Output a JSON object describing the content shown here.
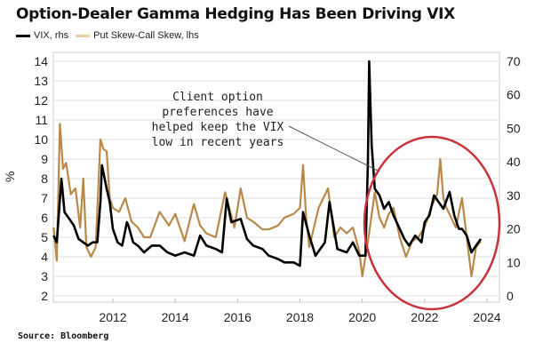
{
  "chart_data": {
    "type": "line",
    "title": "Option-Dealer Gamma Hedging Has Been Driving VIX",
    "source": "Source: Bloomberg",
    "left_axis": {
      "label": "%",
      "range": [
        2,
        14
      ],
      "ticks": [
        "2",
        "3",
        "4",
        "5",
        "6",
        "7",
        "8",
        "9",
        "10",
        "11",
        "12",
        "13",
        "14"
      ]
    },
    "right_axis": {
      "range": [
        0,
        70
      ],
      "ticks": [
        "0",
        "10",
        "20",
        "30",
        "40",
        "50",
        "60",
        "70"
      ]
    },
    "x_axis": {
      "range": [
        2010.09,
        2024.4
      ],
      "ticks": [
        "2012",
        "2014",
        "2016",
        "2018",
        "2020",
        "2022",
        "2024"
      ]
    },
    "grid": true,
    "legend_placement": "top-left",
    "annotation": [
      "Client option",
      "preferences have",
      "helped keep the VIX",
      "low in recent years"
    ],
    "series": [
      {
        "name": "VIX, rhs",
        "axis": "right",
        "color": "#000000",
        "x": [
          2010.1,
          2010.2,
          2010.35,
          2010.45,
          2010.6,
          2010.75,
          2010.9,
          2011.05,
          2011.2,
          2011.35,
          2011.5,
          2011.6,
          2011.65,
          2011.8,
          2011.9,
          2012.0,
          2012.15,
          2012.3,
          2012.45,
          2012.5,
          2012.65,
          2012.8,
          2013.0,
          2013.25,
          2013.5,
          2013.75,
          2014.0,
          2014.3,
          2014.6,
          2014.8,
          2015.0,
          2015.3,
          2015.5,
          2015.65,
          2015.8,
          2016.1,
          2016.3,
          2016.5,
          2016.8,
          2017.0,
          2017.3,
          2017.5,
          2017.8,
          2018.0,
          2018.1,
          2018.3,
          2018.5,
          2018.8,
          2018.95,
          2019.2,
          2019.5,
          2019.7,
          2019.9,
          2020.1,
          2020.18,
          2020.22,
          2020.3,
          2020.4,
          2020.55,
          2020.7,
          2020.85,
          2021.0,
          2021.2,
          2021.35,
          2021.5,
          2021.7,
          2021.9,
          2022.0,
          2022.15,
          2022.3,
          2022.45,
          2022.6,
          2022.8,
          2022.95,
          2023.1,
          2023.2,
          2023.35,
          2023.5,
          2023.65,
          2023.8
        ],
        "values": [
          18,
          16,
          35,
          25,
          23,
          21,
          17,
          16,
          15,
          16,
          16,
          28,
          39,
          32,
          28,
          20,
          16,
          15,
          22,
          21,
          16,
          15,
          13,
          15,
          15,
          13,
          12,
          13,
          12,
          18,
          15,
          14,
          13,
          29,
          22,
          23,
          17,
          15,
          14,
          12,
          11,
          10,
          10,
          9,
          25,
          18,
          12,
          16,
          28,
          14,
          13,
          16,
          12,
          12,
          40,
          70,
          45,
          32,
          30,
          26,
          28,
          24,
          20,
          17,
          15,
          18,
          16,
          22,
          24,
          30,
          28,
          26,
          31,
          24,
          20,
          20,
          18,
          13,
          15,
          17
        ]
      },
      {
        "name": "Put Skew-Call Skew, lhs",
        "axis": "left",
        "color": "#b8894a",
        "x": [
          2010.1,
          2010.2,
          2010.3,
          2010.4,
          2010.5,
          2010.65,
          2010.8,
          2010.95,
          2011.05,
          2011.15,
          2011.3,
          2011.45,
          2011.6,
          2011.7,
          2011.8,
          2011.9,
          2012.0,
          2012.2,
          2012.4,
          2012.6,
          2012.8,
          2013.0,
          2013.2,
          2013.5,
          2013.8,
          2014.0,
          2014.3,
          2014.6,
          2014.8,
          2015.0,
          2015.3,
          2015.6,
          2015.9,
          2016.1,
          2016.3,
          2016.5,
          2016.8,
          2017.0,
          2017.3,
          2017.5,
          2017.8,
          2018.0,
          2018.1,
          2018.2,
          2018.3,
          2018.6,
          2018.9,
          2019.1,
          2019.3,
          2019.5,
          2019.7,
          2019.9,
          2020.0,
          2020.1,
          2020.2,
          2020.4,
          2020.55,
          2020.7,
          2020.85,
          2021.0,
          2021.2,
          2021.4,
          2021.6,
          2021.8,
          2022.0,
          2022.2,
          2022.4,
          2022.5,
          2022.6,
          2022.7,
          2022.85,
          2023.0,
          2023.2,
          2023.35,
          2023.5,
          2023.65,
          2023.8
        ],
        "values": [
          5.5,
          3.8,
          10.8,
          8.5,
          8.8,
          7.2,
          7.5,
          5.5,
          8.0,
          4.5,
          4.0,
          4.5,
          10.0,
          9.5,
          9.4,
          7.0,
          6.5,
          6.3,
          7.0,
          5.8,
          5.5,
          5.0,
          5.0,
          6.3,
          5.6,
          6.2,
          4.8,
          6.7,
          5.6,
          5.2,
          5.0,
          7.3,
          5.5,
          7.5,
          6.0,
          5.8,
          5.4,
          5.4,
          5.6,
          6.0,
          6.2,
          6.5,
          8.7,
          6.0,
          4.5,
          6.5,
          7.5,
          5.0,
          5.5,
          5.2,
          5.5,
          4.3,
          3.0,
          4.0,
          5.0,
          7.3,
          6.0,
          5.5,
          6.2,
          6.5,
          5.0,
          4.0,
          4.8,
          5.0,
          5.5,
          6.5,
          7.2,
          9.0,
          7.0,
          6.5,
          6.0,
          5.5,
          7.0,
          5.0,
          3.0,
          4.5,
          4.8
        ]
      }
    ]
  }
}
